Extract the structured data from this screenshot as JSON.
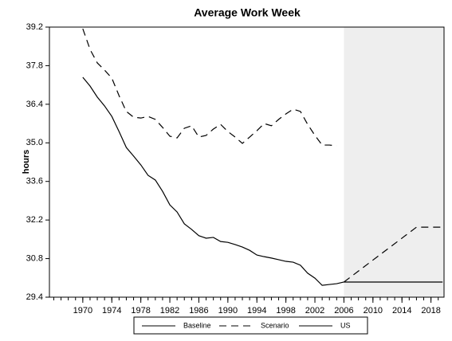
{
  "chart_data": {
    "type": "line",
    "title": "Average Work Week",
    "ylabel": "hours",
    "xlim": [
      1965.4,
      2019.8
    ],
    "ylim": [
      29.4,
      39.2
    ],
    "xticks": [
      1970,
      1974,
      1978,
      1982,
      1986,
      1990,
      1994,
      1998,
      2002,
      2006,
      2010,
      2014,
      2018
    ],
    "xminorticks": [
      1966,
      1967,
      1968,
      1969,
      1970,
      1971,
      1972,
      1973,
      1974,
      1975,
      1976,
      1977,
      1978,
      1979,
      1980,
      1981,
      1982,
      1983,
      1984,
      1985,
      1986,
      1987,
      1988,
      1989,
      1990,
      1991,
      1992,
      1993,
      1994,
      1995,
      1996,
      1997,
      1998,
      1999,
      2000,
      2001,
      2002,
      2003,
      2004,
      2005,
      2006,
      2007,
      2008,
      2009,
      2010,
      2011,
      2012,
      2013,
      2014,
      2015,
      2016,
      2017,
      2018,
      2019
    ],
    "yticks": [
      29.4,
      30.8,
      32.2,
      33.6,
      {
        "value": 35,
        "label": "35.0"
      },
      36.4,
      37.8,
      39.2
    ],
    "shade_start": 2006,
    "shade_color": "#eeeeee",
    "series": [
      {
        "name": "Baseline",
        "color": "#000000",
        "dash": "solid",
        "x": [
          2006,
          2019.6
        ],
        "values": [
          29.95,
          29.95
        ]
      },
      {
        "name": "Scenario",
        "color": "#000000",
        "dash": "dashed",
        "x": [
          1970,
          1971,
          1972,
          1973,
          1974,
          1975,
          1976,
          1977,
          1978,
          1979,
          1980,
          1981,
          1982,
          1983,
          1984,
          1985,
          1986,
          1987,
          1988,
          1989,
          1990,
          1991,
          1992,
          1993,
          1994,
          1995,
          1996,
          1997,
          1998,
          1999,
          2000,
          2001,
          2002,
          2003,
          2004,
          2005,
          2006,
          2006,
          2016,
          2019.6
        ],
        "values": [
          39.14,
          38.39,
          37.9,
          37.64,
          37.35,
          36.71,
          36.14,
          35.93,
          35.9,
          35.96,
          35.85,
          35.56,
          35.24,
          35.18,
          35.53,
          35.62,
          35.21,
          35.27,
          35.5,
          35.67,
          35.41,
          35.21,
          34.98,
          35.21,
          35.44,
          35.7,
          35.62,
          35.85,
          36.05,
          36.22,
          36.14,
          35.67,
          35.27,
          34.92,
          34.92,
          34.89,
          null,
          29.95,
          31.94,
          31.94
        ]
      },
      {
        "name": "US",
        "color": "#000000",
        "dash": "solid",
        "x": [
          1970,
          1971,
          1972,
          1973,
          1974,
          1975,
          1976,
          1977,
          1978,
          1979,
          1980,
          1981,
          1982,
          1983,
          1984,
          1985,
          1986,
          1987,
          1988,
          1989,
          1990,
          1991,
          1992,
          1993,
          1994,
          1995,
          1996,
          1997,
          1998,
          1999,
          2000,
          2001,
          2002,
          2003,
          2004,
          2005,
          2006
        ],
        "values": [
          37.38,
          37.06,
          36.66,
          36.34,
          35.96,
          35.41,
          34.83,
          34.52,
          34.2,
          33.82,
          33.65,
          33.24,
          32.75,
          32.49,
          32.06,
          31.86,
          31.63,
          31.54,
          31.57,
          31.42,
          31.39,
          31.31,
          31.22,
          31.1,
          30.93,
          30.87,
          30.82,
          30.76,
          30.7,
          30.67,
          30.56,
          30.27,
          30.09,
          29.83,
          29.86,
          29.89,
          29.95
        ]
      }
    ]
  }
}
